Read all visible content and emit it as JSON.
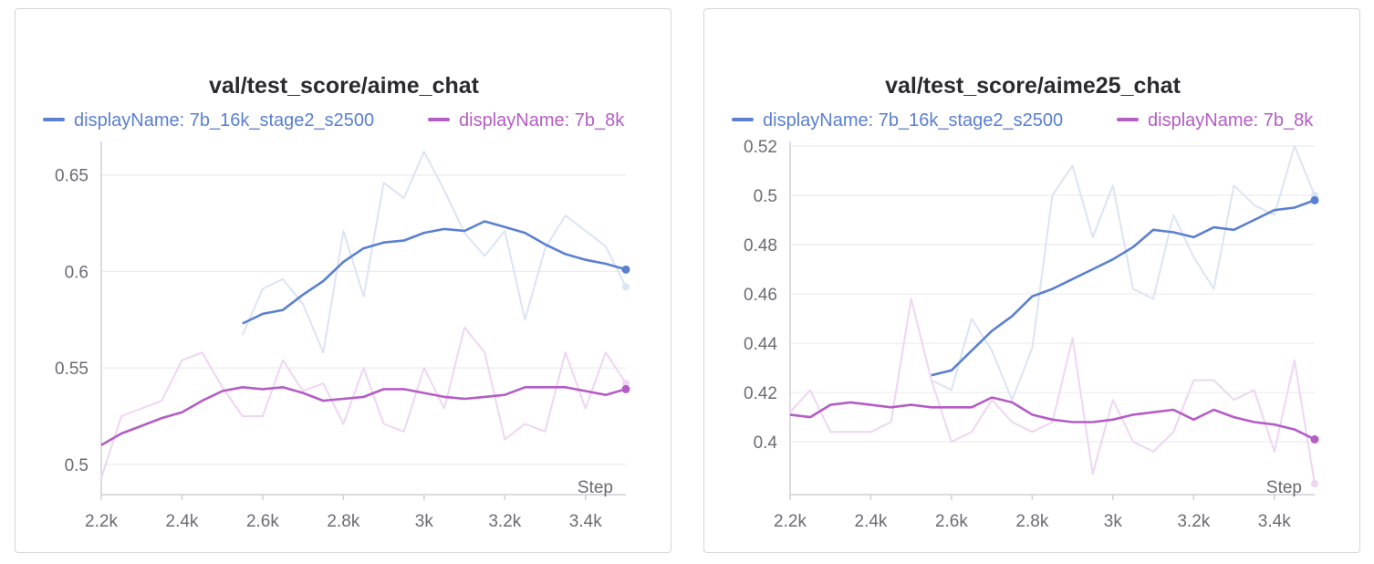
{
  "colors": {
    "series_a": "#5b80d0",
    "series_b": "#b45dc4",
    "series_a_raw": "#dbe4f5",
    "series_b_raw": "#efd5f3",
    "grid": "#ececef",
    "axis": "#d0d0d6"
  },
  "chart_data": [
    {
      "type": "line",
      "title": "val/test_score/aime_chat",
      "xlabel": "Step",
      "ylabel": "",
      "xlim": [
        2200,
        3500
      ],
      "ylim": [
        0.49,
        0.665
      ],
      "xticks": [
        2200,
        2400,
        2600,
        2800,
        3000,
        3200,
        3400
      ],
      "xtick_labels": [
        "2.2k",
        "2.4k",
        "2.6k",
        "2.8k",
        "3k",
        "3.2k",
        "3.4k"
      ],
      "yticks": [
        0.5,
        0.55,
        0.6,
        0.65
      ],
      "ytick_labels": [
        "0.5",
        "0.55",
        "0.6",
        "0.65"
      ],
      "grid": true,
      "legend_position": "top",
      "series": [
        {
          "name": "displayName: 7b_16k_stage2_s2500",
          "x": [
            2550,
            2600,
            2650,
            2700,
            2750,
            2800,
            2850,
            2900,
            2950,
            3000,
            3050,
            3100,
            3150,
            3200,
            3250,
            3300,
            3350,
            3400,
            3450,
            3500
          ],
          "smoothed": [
            0.573,
            0.578,
            0.58,
            0.588,
            0.595,
            0.605,
            0.612,
            0.615,
            0.616,
            0.62,
            0.622,
            0.621,
            0.626,
            0.623,
            0.62,
            0.614,
            0.609,
            0.606,
            0.604,
            0.601
          ],
          "raw": [
            0.567,
            0.591,
            0.596,
            0.583,
            0.558,
            0.621,
            0.587,
            0.646,
            0.638,
            0.662,
            0.642,
            0.62,
            0.608,
            0.621,
            0.575,
            0.612,
            0.629,
            0.621,
            0.613,
            0.592
          ]
        },
        {
          "name": "displayName: 7b_8k",
          "x": [
            2200,
            2250,
            2300,
            2350,
            2400,
            2450,
            2500,
            2550,
            2600,
            2650,
            2700,
            2750,
            2800,
            2850,
            2900,
            2950,
            3000,
            3050,
            3100,
            3150,
            3200,
            3250,
            3300,
            3350,
            3400,
            3450,
            3500
          ],
          "smoothed": [
            0.51,
            0.516,
            0.52,
            0.524,
            0.527,
            0.533,
            0.538,
            0.54,
            0.539,
            0.54,
            0.537,
            0.533,
            0.534,
            0.535,
            0.539,
            0.539,
            0.537,
            0.535,
            0.534,
            0.535,
            0.536,
            0.54,
            0.54,
            0.54,
            0.538,
            0.536,
            0.539
          ],
          "raw": [
            0.493,
            0.525,
            0.529,
            0.533,
            0.554,
            0.558,
            0.54,
            0.525,
            0.525,
            0.554,
            0.538,
            0.542,
            0.521,
            0.55,
            0.521,
            0.517,
            0.55,
            0.529,
            0.571,
            0.558,
            0.513,
            0.521,
            0.517,
            0.558,
            0.529,
            0.558,
            0.542
          ]
        }
      ]
    },
    {
      "type": "line",
      "title": "val/test_score/aime25_chat",
      "xlabel": "Step",
      "ylabel": "",
      "xlim": [
        2200,
        3500
      ],
      "ylim": [
        0.383,
        0.52
      ],
      "xticks": [
        2200,
        2400,
        2600,
        2800,
        3000,
        3200,
        3400
      ],
      "xtick_labels": [
        "2.2k",
        "2.4k",
        "2.6k",
        "2.8k",
        "3k",
        "3.2k",
        "3.4k"
      ],
      "yticks": [
        0.4,
        0.42,
        0.44,
        0.46,
        0.48,
        0.5,
        0.52
      ],
      "ytick_labels": [
        "0.4",
        "0.42",
        "0.44",
        "0.46",
        "0.48",
        "0.5",
        "0.52"
      ],
      "grid": true,
      "legend_position": "top",
      "series": [
        {
          "name": "displayName: 7b_16k_stage2_s2500",
          "x": [
            2550,
            2600,
            2650,
            2700,
            2750,
            2800,
            2850,
            2900,
            2950,
            3000,
            3050,
            3100,
            3150,
            3200,
            3250,
            3300,
            3350,
            3400,
            3450,
            3500
          ],
          "smoothed": [
            0.427,
            0.429,
            0.437,
            0.445,
            0.451,
            0.459,
            0.462,
            0.466,
            0.47,
            0.474,
            0.479,
            0.486,
            0.485,
            0.483,
            0.487,
            0.486,
            0.49,
            0.494,
            0.495,
            0.498
          ],
          "raw": [
            0.425,
            0.421,
            0.45,
            0.437,
            0.417,
            0.438,
            0.5,
            0.512,
            0.483,
            0.504,
            0.462,
            0.458,
            0.492,
            0.475,
            0.462,
            0.504,
            0.496,
            0.492,
            0.52,
            0.5
          ]
        },
        {
          "name": "displayName: 7b_8k",
          "x": [
            2200,
            2250,
            2300,
            2350,
            2400,
            2450,
            2500,
            2550,
            2600,
            2650,
            2700,
            2750,
            2800,
            2850,
            2900,
            2950,
            3000,
            3050,
            3100,
            3150,
            3200,
            3250,
            3300,
            3350,
            3400,
            3450,
            3500
          ],
          "smoothed": [
            0.411,
            0.41,
            0.415,
            0.416,
            0.415,
            0.414,
            0.415,
            0.414,
            0.414,
            0.414,
            0.418,
            0.416,
            0.411,
            0.409,
            0.408,
            0.408,
            0.409,
            0.411,
            0.412,
            0.413,
            0.409,
            0.413,
            0.41,
            0.408,
            0.407,
            0.405,
            0.401
          ],
          "raw": [
            0.412,
            0.421,
            0.404,
            0.404,
            0.404,
            0.408,
            0.458,
            0.425,
            0.4,
            0.404,
            0.417,
            0.408,
            0.404,
            0.408,
            0.442,
            0.387,
            0.417,
            0.4,
            0.396,
            0.404,
            0.425,
            0.425,
            0.417,
            0.421,
            0.396,
            0.433,
            0.383
          ]
        }
      ]
    }
  ]
}
